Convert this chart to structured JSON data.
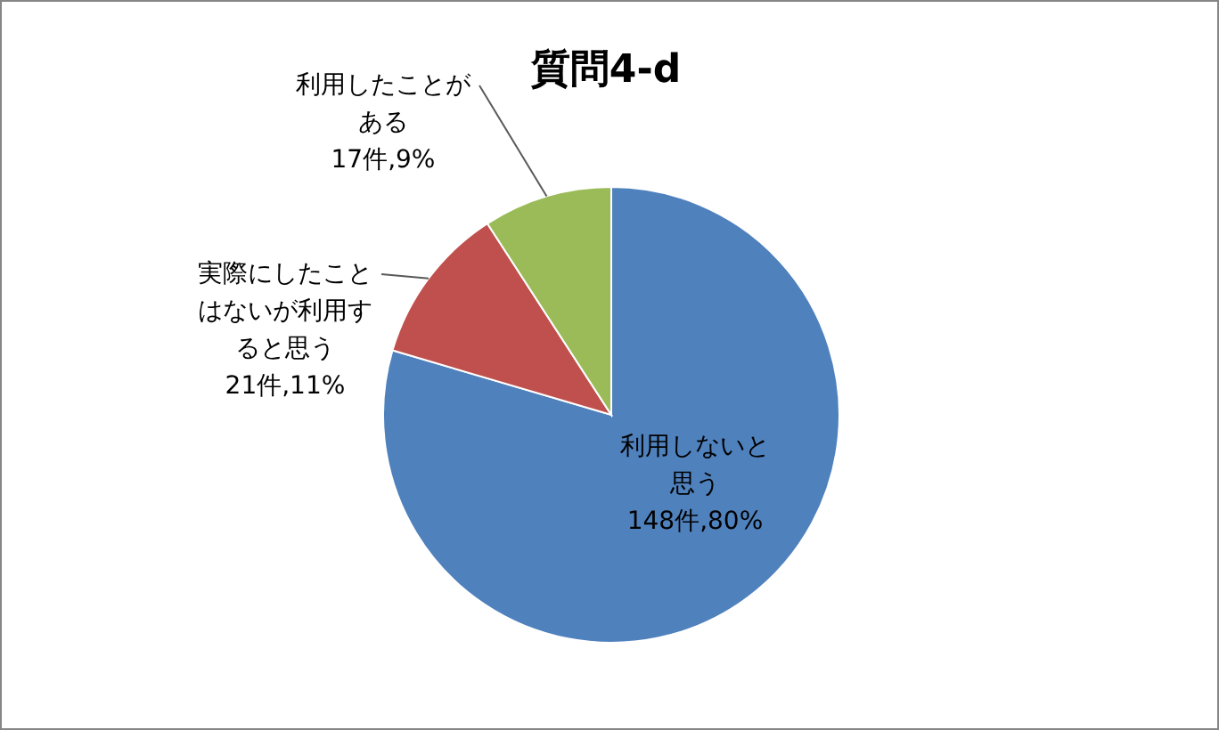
{
  "chart_data": {
    "type": "pie",
    "title": "質問4-d",
    "categories": [
      "利用しないと思う",
      "実際にしたことはないが利用すると思う",
      "利用したことがある"
    ],
    "values": [
      148,
      21,
      17
    ],
    "colors": [
      "#4f81bd",
      "#c0504d",
      "#9bbb59"
    ],
    "value_labels": [
      "148件,80%",
      "21件,11%",
      "17件,9%"
    ]
  }
}
